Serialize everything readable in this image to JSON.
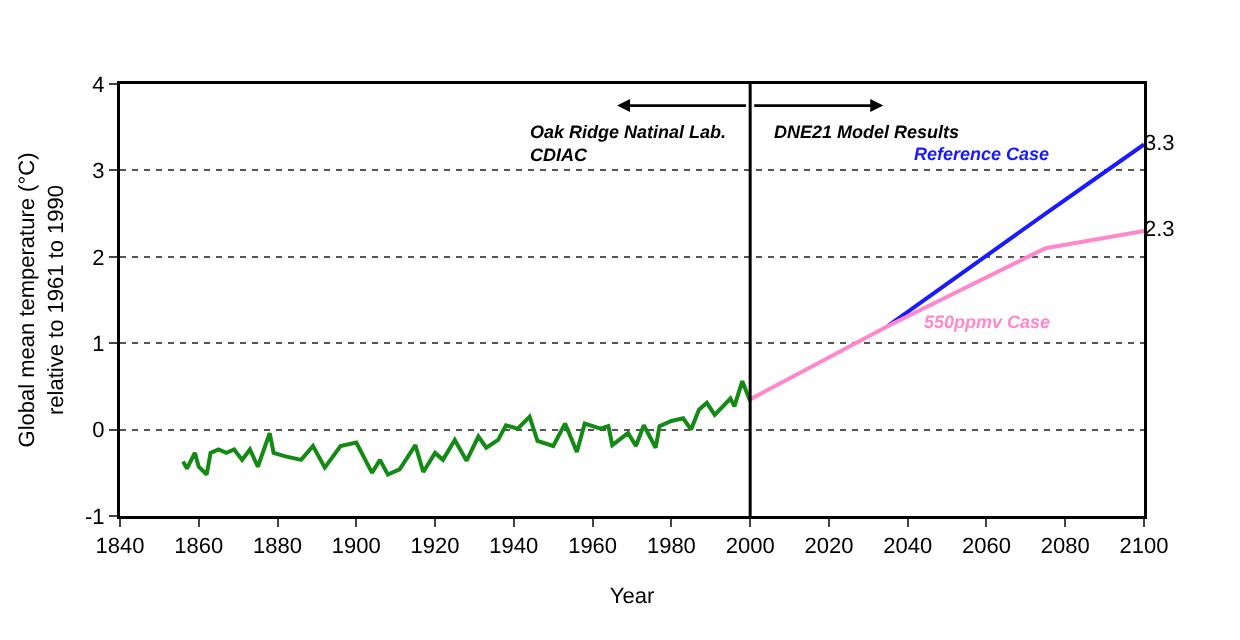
{
  "chart_data": {
    "type": "line",
    "xlabel": "Year",
    "ylabel": "Global mean temperature (°C)\nrelative to 1961 to 1990",
    "xlim": [
      1840,
      2100
    ],
    "xticks": [
      1840,
      1860,
      1880,
      1900,
      1920,
      1940,
      1960,
      1980,
      2000,
      2020,
      2040,
      2060,
      2080,
      2100
    ],
    "ylim": [
      -1,
      4
    ],
    "yticks": [
      -1,
      0,
      1,
      2,
      3,
      4
    ],
    "grid": "y",
    "legend": false,
    "marker": "none",
    "line_style": "solid",
    "series": [
      {
        "color": "#138a13",
        "x": [
          1856,
          1857,
          1859,
          1860,
          1862,
          1863,
          1865,
          1867,
          1869,
          1871,
          1873,
          1875,
          1878,
          1879,
          1882,
          1886,
          1889,
          1892,
          1896,
          1900,
          1904,
          1906,
          1908,
          1911,
          1915,
          1917,
          1920,
          1922,
          1925,
          1928,
          1931,
          1933,
          1936,
          1938,
          1941,
          1944,
          1946,
          1950,
          1953,
          1956,
          1958,
          1962,
          1964,
          1965,
          1969,
          1971,
          1973,
          1976,
          1977,
          1980,
          1983,
          1985,
          1987,
          1989,
          1991,
          1995,
          1996,
          1998,
          2000
        ],
        "values": [
          -0.37,
          -0.45,
          -0.27,
          -0.43,
          -0.52,
          -0.27,
          -0.23,
          -0.27,
          -0.23,
          -0.35,
          -0.23,
          -0.43,
          -0.04,
          -0.27,
          -0.31,
          -0.35,
          -0.19,
          -0.44,
          -0.19,
          -0.15,
          -0.5,
          -0.35,
          -0.52,
          -0.46,
          -0.18,
          -0.49,
          -0.27,
          -0.35,
          -0.12,
          -0.36,
          -0.08,
          -0.21,
          -0.12,
          0.05,
          0.01,
          0.15,
          -0.13,
          -0.19,
          0.07,
          -0.26,
          0.07,
          0.01,
          0.04,
          -0.18,
          -0.04,
          -0.19,
          0.05,
          -0.21,
          0.04,
          0.1,
          0.13,
          0,
          0.23,
          0.31,
          0.17,
          0.36,
          0.27,
          0.56,
          0.33
        ]
      },
      {
        "name": "Reference Case",
        "color": "#1a1aff",
        "x": [
          2035,
          2075,
          2100
        ],
        "values": [
          1.2,
          2.5,
          3.3
        ],
        "value_labels": [
          null,
          null,
          "3.3"
        ]
      },
      {
        "name": "550ppmv Case",
        "color": "#ff88cc",
        "x": [
          2000,
          2035,
          2075,
          2100
        ],
        "values": [
          0.35,
          1.2,
          2.1,
          2.3
        ],
        "value_labels": [
          null,
          null,
          null,
          "2.3"
        ]
      }
    ],
    "ref_lines": [
      {
        "axis": "x",
        "value": 2000,
        "color": "#000000",
        "line_style": "solid"
      }
    ],
    "annotations": [
      "Oak Ridge Natinal Lab.\nCDIAC",
      "DNE21 Model Results"
    ]
  }
}
